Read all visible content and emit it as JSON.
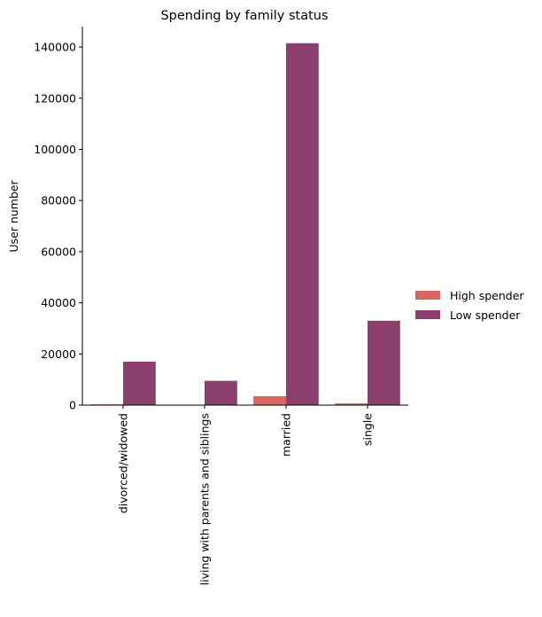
{
  "chart_data": {
    "type": "bar",
    "title": "Spending by family status",
    "xlabel": "",
    "ylabel": "User number",
    "categories": [
      "divorced/widowed",
      "living with parents and siblings",
      "married",
      "single"
    ],
    "series": [
      {
        "name": "High spender",
        "color": "#d8655f",
        "values": [
          300,
          50,
          3500,
          700
        ]
      },
      {
        "name": "Low spender",
        "color": "#8c3f6d",
        "values": [
          17000,
          9500,
          141500,
          33000
        ]
      }
    ],
    "ylim": [
      0,
      148000
    ],
    "yticks": [
      0,
      20000,
      40000,
      60000,
      80000,
      100000,
      120000,
      140000
    ],
    "ytick_labels": [
      "0",
      "20000",
      "40000",
      "60000",
      "80000",
      "100000",
      "120000",
      "140000"
    ],
    "legend_position": "right",
    "grid": false
  }
}
